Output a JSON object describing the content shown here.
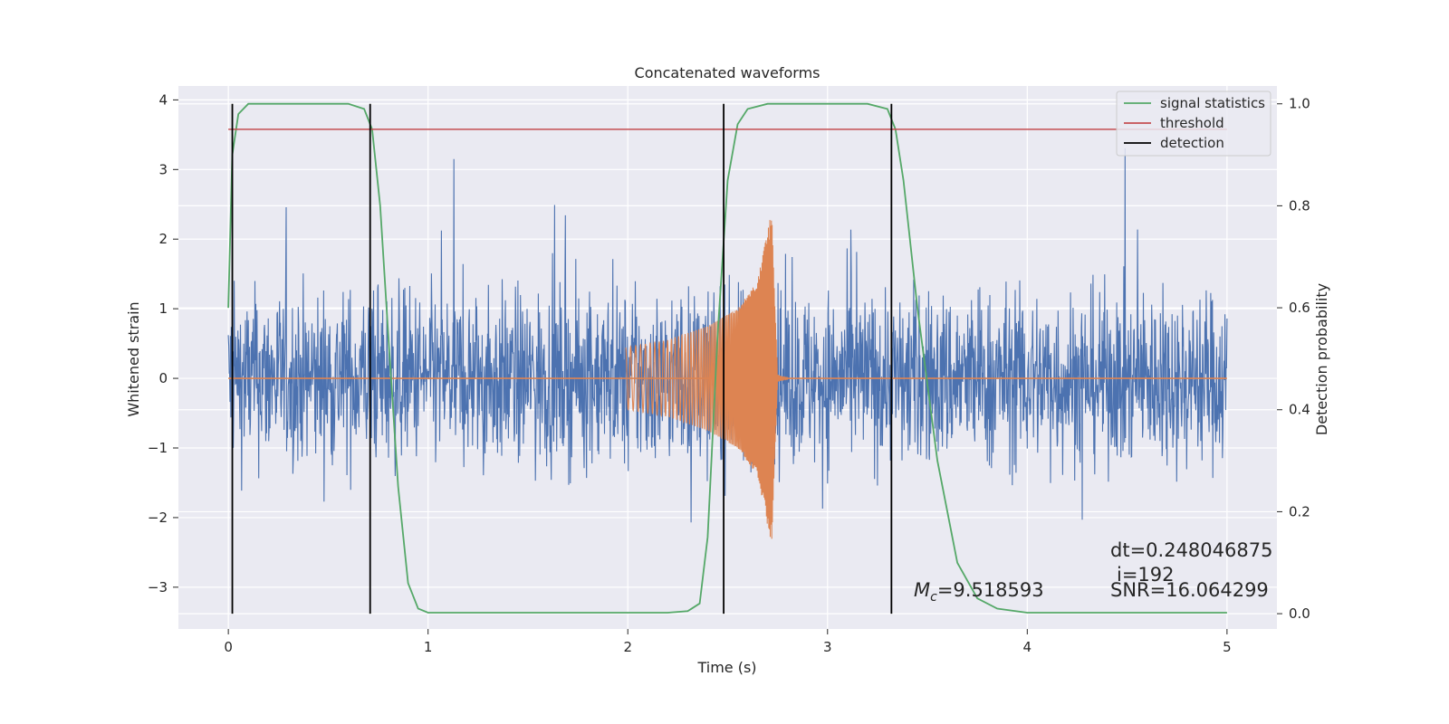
{
  "chart_data": {
    "type": "line",
    "title": "Concatenated waveforms",
    "xlabel": "Time (s)",
    "ylabel": "Whitened strain",
    "ylabel_right": "Detection probability",
    "xlim": [
      -0.25,
      5.25
    ],
    "ylim": [
      -3.6,
      4.2
    ],
    "ylim_right": [
      -0.03,
      1.035
    ],
    "xticks": [
      0,
      1,
      2,
      3,
      4,
      5
    ],
    "xtick_labels": [
      "0",
      "1",
      "2",
      "3",
      "4",
      "5"
    ],
    "yticks": [
      -3,
      -2,
      -1,
      0,
      1,
      2,
      3,
      4
    ],
    "ytick_labels": [
      "−3",
      "−2",
      "−1",
      "0",
      "1",
      "2",
      "3",
      "4"
    ],
    "yticks_right": [
      0.0,
      0.2,
      0.4,
      0.6,
      0.8,
      1.0
    ],
    "ytick_right_labels": [
      "0.0",
      "0.2",
      "0.4",
      "0.6",
      "0.8",
      "1.0"
    ],
    "grid": true,
    "legend_placement": "top-right",
    "series": [
      {
        "name": "",
        "axis": "left",
        "kind": "noise",
        "color": "#4c72b0",
        "x_range": [
          0,
          5
        ],
        "amplitude_typical": 1.6,
        "amplitude_peak": 3.9
      },
      {
        "name": "",
        "axis": "left",
        "kind": "chirp",
        "color": "#dd8452",
        "x": [
          0,
          2.0,
          2.2,
          2.4,
          2.55,
          2.65,
          2.72,
          2.75,
          2.78,
          5.0
        ],
        "envelope": [
          0,
          0.45,
          0.55,
          0.75,
          1.0,
          1.4,
          2.4,
          0.05,
          0.02,
          0
        ]
      },
      {
        "name": "signal statistics",
        "axis": "right",
        "color": "#55a868",
        "x": [
          0,
          0.02,
          0.05,
          0.1,
          0.6,
          0.68,
          0.72,
          0.76,
          0.8,
          0.85,
          0.9,
          0.95,
          1.0,
          2.2,
          2.3,
          2.36,
          2.4,
          2.45,
          2.5,
          2.55,
          2.6,
          2.7,
          3.2,
          3.3,
          3.34,
          3.38,
          3.45,
          3.55,
          3.65,
          3.75,
          3.85,
          4.0,
          5.0
        ],
        "y": [
          0.6,
          0.9,
          0.98,
          1.0,
          1.0,
          0.99,
          0.95,
          0.8,
          0.55,
          0.25,
          0.06,
          0.01,
          0.002,
          0.002,
          0.005,
          0.02,
          0.15,
          0.55,
          0.85,
          0.96,
          0.99,
          1.0,
          1.0,
          0.99,
          0.95,
          0.85,
          0.6,
          0.3,
          0.1,
          0.03,
          0.01,
          0.002,
          0.002
        ]
      },
      {
        "name": "threshold",
        "axis": "right",
        "color": "#c44e52",
        "x": [
          0,
          5
        ],
        "y": [
          0.95,
          0.95
        ]
      },
      {
        "name": "detection",
        "axis": "right",
        "color": "#000000",
        "vlines": [
          0.02,
          0.71,
          2.48,
          3.32
        ],
        "y_span": [
          0,
          1.0
        ]
      }
    ],
    "annotations": {
      "mc_symbol": "M",
      "mc_subscript": "c",
      "mc_value": "=9.518593",
      "dt": "dt=0.248046875",
      "i": "i=192",
      "snr": "SNR=16.064299"
    },
    "colors": {
      "background": "#eaeaf2",
      "grid": "#ffffff",
      "noise": "#4c72b0",
      "chirp": "#dd8452",
      "statistics": "#55a868",
      "threshold": "#c44e52",
      "detection": "#000000"
    }
  }
}
